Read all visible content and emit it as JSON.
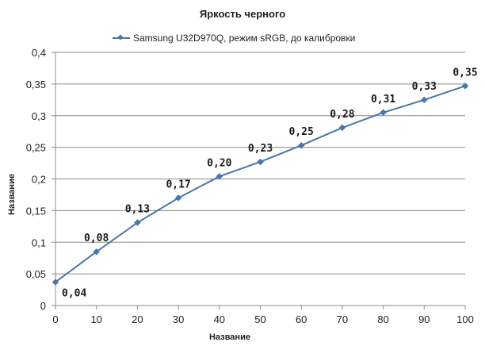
{
  "chart_data": {
    "type": "line",
    "title": "Яркость черного",
    "xlabel": "Название",
    "ylabel": "Название",
    "xlim": [
      0,
      100
    ],
    "ylim": [
      0,
      0.4
    ],
    "x_ticks": [
      "0",
      "10",
      "20",
      "30",
      "40",
      "50",
      "60",
      "70",
      "80",
      "90",
      "100"
    ],
    "y_ticks": [
      "0",
      "0,05",
      "0,1",
      "0,15",
      "0,2",
      "0,25",
      "0,3",
      "0,35",
      "0,4"
    ],
    "grid": true,
    "legend_position": "top",
    "series": [
      {
        "name": "Samsung U32D970Q, режим sRGB, до калибровки",
        "color": "#4a76a8",
        "x": [
          0,
          10,
          20,
          30,
          40,
          50,
          60,
          70,
          80,
          90,
          100
        ],
        "y": [
          0.037,
          0.085,
          0.131,
          0.17,
          0.204,
          0.227,
          0.253,
          0.281,
          0.305,
          0.325,
          0.347
        ],
        "labels": [
          "0,04",
          "0,08",
          "0,13",
          "0,17",
          "0,20",
          "0,23",
          "0,25",
          "0,28",
          "0,31",
          "0,33",
          "0,35"
        ]
      }
    ]
  }
}
